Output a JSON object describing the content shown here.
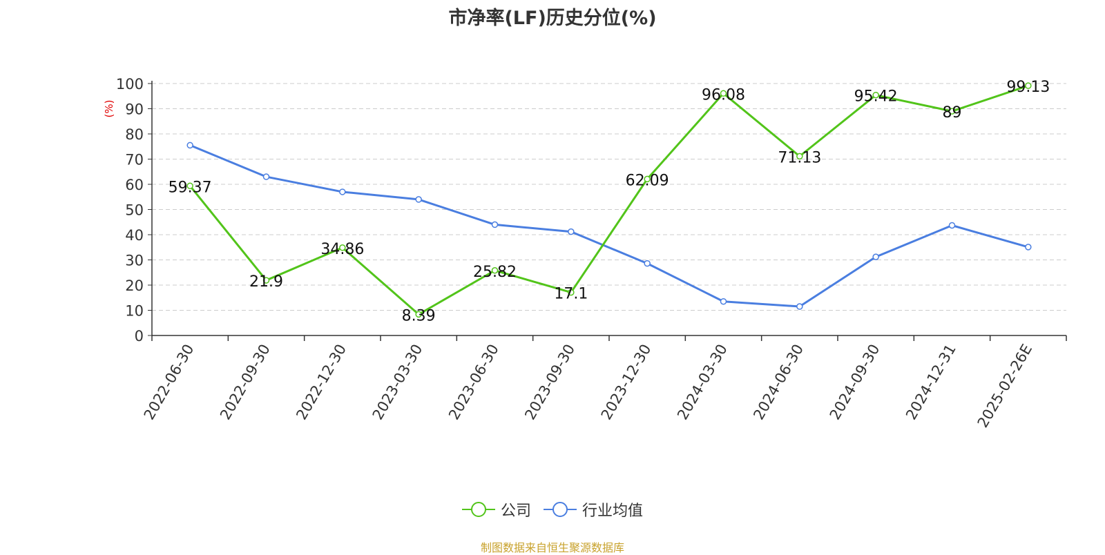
{
  "chart_data": {
    "type": "line",
    "title": "市净率(LF)历史分位(%)",
    "ylabel": "(%)",
    "ylim": [
      0,
      100
    ],
    "yticks": [
      0,
      10,
      20,
      30,
      40,
      50,
      60,
      70,
      80,
      90,
      100
    ],
    "categories": [
      "2022-06-30",
      "2022-09-30",
      "2022-12-30",
      "2023-03-30",
      "2023-06-30",
      "2023-09-30",
      "2023-12-30",
      "2024-03-30",
      "2024-06-30",
      "2024-09-30",
      "2024-12-31",
      "2025-02-26E"
    ],
    "grid": true,
    "legend_position": "bottom-center",
    "series": [
      {
        "name": "公司",
        "color": "#52c41a",
        "values": [
          59.37,
          21.9,
          34.86,
          8.39,
          25.82,
          17.1,
          62.09,
          96.08,
          71.13,
          95.42,
          89,
          99.13
        ],
        "labels": [
          "59.37",
          "21.9",
          "34.86",
          "8.39",
          "25.82",
          "17.1",
          "62.09",
          "96.08",
          "71.13",
          "95.42",
          "89",
          "99.13"
        ]
      },
      {
        "name": "行业均值",
        "color": "#4a7ee0",
        "values": [
          75.5,
          63,
          57,
          54,
          44,
          41.2,
          28.6,
          13.5,
          11.5,
          31.2,
          43.7,
          35.1
        ]
      }
    ]
  },
  "source": "制图数据来自恒生聚源数据库"
}
